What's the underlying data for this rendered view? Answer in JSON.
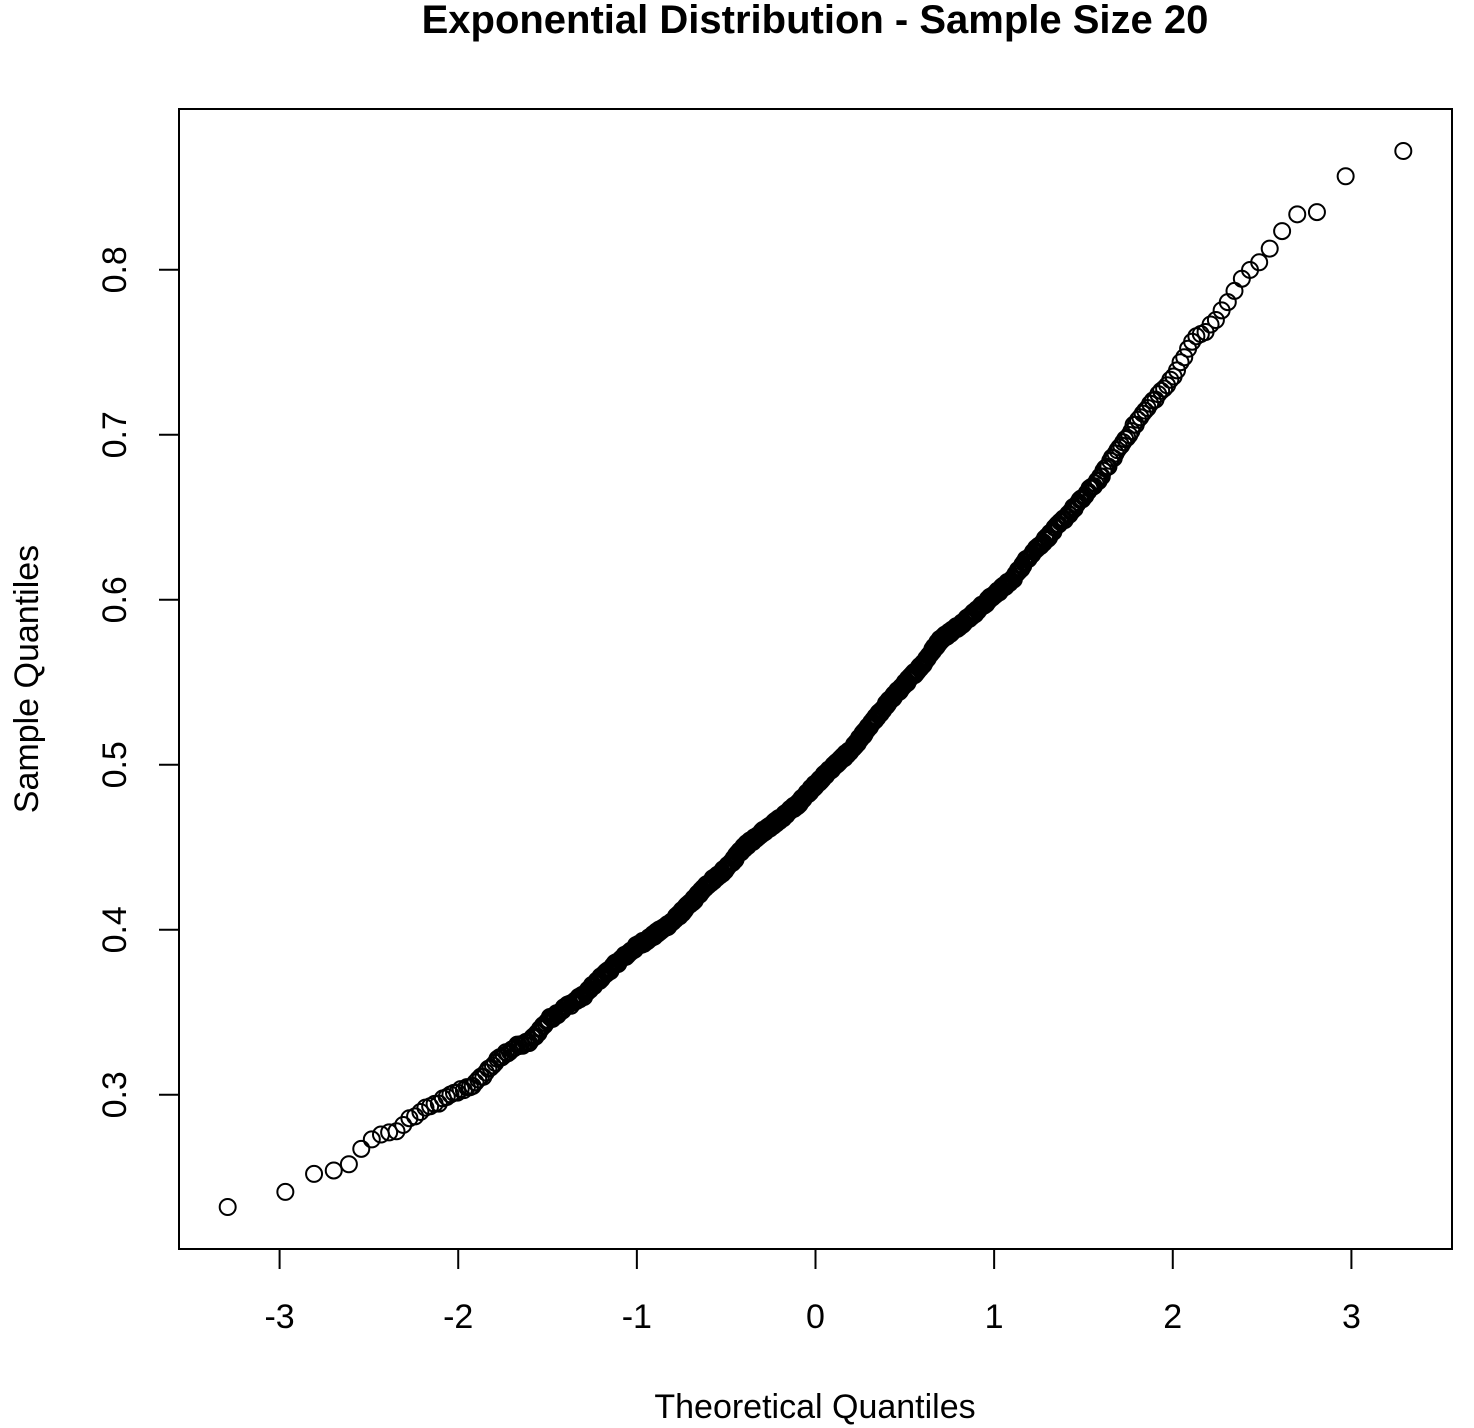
{
  "chart_data": {
    "type": "scatter",
    "title": "Exponential Distribution - Sample Size 20",
    "xlabel": "Theoretical Quantiles",
    "ylabel": "Sample Quantiles",
    "xlim": [
      -3.3,
      3.3
    ],
    "ylim": [
      0.232,
      0.872
    ],
    "x_ticks": [
      -3,
      -2,
      -1,
      0,
      1,
      2,
      3
    ],
    "y_ticks": [
      0.3,
      0.4,
      0.5,
      0.6,
      0.7,
      0.8
    ],
    "grid": false,
    "colors": {
      "points": "#000000",
      "frame": "#000000",
      "background": "#ffffff"
    },
    "series": [
      {
        "marker": "open-circle",
        "n": 1000,
        "quantile_curve": [
          [
            -3.29,
            0.232
          ],
          [
            -2.97,
            0.241
          ],
          [
            -2.81,
            0.252
          ],
          [
            -2.7,
            0.254
          ],
          [
            -2.61,
            0.258
          ],
          [
            -2.53,
            0.269
          ],
          [
            -2.46,
            0.275
          ],
          [
            -2.4,
            0.277
          ],
          [
            -2.34,
            0.278
          ],
          [
            -2.28,
            0.285
          ],
          [
            -2.2,
            0.29
          ],
          [
            -2.1,
            0.296
          ],
          [
            -2.0,
            0.302
          ],
          [
            -1.9,
            0.307
          ],
          [
            -1.8,
            0.319
          ],
          [
            -1.7,
            0.328
          ],
          [
            -1.6,
            0.332
          ],
          [
            -1.5,
            0.345
          ],
          [
            -1.4,
            0.353
          ],
          [
            -1.3,
            0.36
          ],
          [
            -1.2,
            0.371
          ],
          [
            -1.1,
            0.381
          ],
          [
            -1.0,
            0.39
          ],
          [
            -0.9,
            0.397
          ],
          [
            -0.8,
            0.405
          ],
          [
            -0.7,
            0.416
          ],
          [
            -0.6,
            0.428
          ],
          [
            -0.5,
            0.437
          ],
          [
            -0.4,
            0.45
          ],
          [
            -0.3,
            0.459
          ],
          [
            -0.2,
            0.467
          ],
          [
            -0.1,
            0.476
          ],
          [
            0.0,
            0.488
          ],
          [
            0.1,
            0.499
          ],
          [
            0.2,
            0.509
          ],
          [
            0.3,
            0.523
          ],
          [
            0.4,
            0.537
          ],
          [
            0.5,
            0.549
          ],
          [
            0.6,
            0.561
          ],
          [
            0.7,
            0.576
          ],
          [
            0.8,
            0.584
          ],
          [
            0.9,
            0.593
          ],
          [
            1.0,
            0.603
          ],
          [
            1.1,
            0.612
          ],
          [
            1.2,
            0.627
          ],
          [
            1.3,
            0.638
          ],
          [
            1.4,
            0.65
          ],
          [
            1.5,
            0.662
          ],
          [
            1.6,
            0.675
          ],
          [
            1.7,
            0.692
          ],
          [
            1.8,
            0.708
          ],
          [
            1.9,
            0.722
          ],
          [
            2.0,
            0.734
          ],
          [
            2.1,
            0.756
          ],
          [
            2.2,
            0.765
          ],
          [
            2.3,
            0.779
          ],
          [
            2.4,
            0.797
          ],
          [
            2.5,
            0.806
          ],
          [
            2.6,
            0.822
          ],
          [
            2.7,
            0.834
          ],
          [
            2.81,
            0.835
          ],
          [
            2.97,
            0.857
          ],
          [
            3.29,
            0.872
          ]
        ]
      }
    ]
  }
}
